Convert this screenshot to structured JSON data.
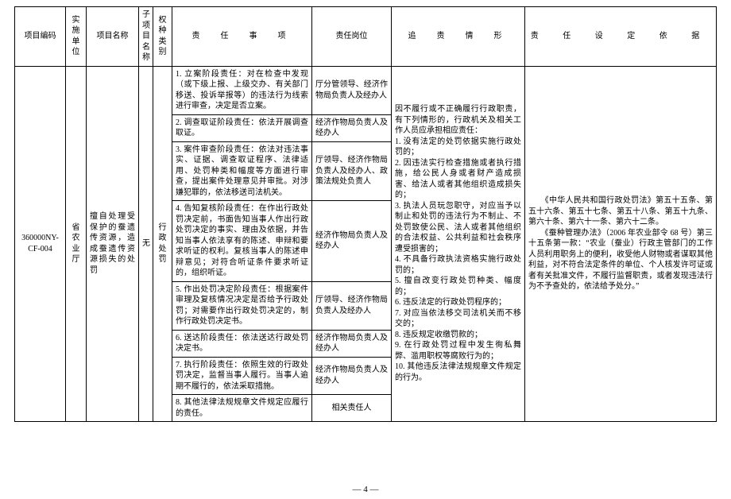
{
  "headers": {
    "code": "项目编码",
    "unit": "实施单位",
    "name": "项目名称",
    "sub": "子项目名称",
    "kind": "权种类别",
    "duty": "责　任　事　项",
    "post": "责任岗位",
    "chase": "追　责　情　形",
    "basis": "责 任 设 定 依 据"
  },
  "row": {
    "code": "360000NY-CF-004",
    "unit": "省农业厅",
    "name": "擅自处理受保护的蚕遗传资源，造成蚕遗传资源损失的处罚",
    "sub": "无",
    "kind": "行政处罚"
  },
  "duties": [
    "1. 立案阶段责任：对在检查中发现（或下级上报、上级交办、有关部门移送、投诉举报等）的违法行为线索进行审查，决定是否立案。",
    "2. 调查取证阶段责任：依法开展调查取证。",
    "3. 案件审查阶段责任：依法对违法事实、证据、调查取证程序、法律适用、处罚种类和幅度等方面进行审查，提出案件处理意见并审批。对涉嫌犯罪的，依法移送司法机关。",
    "4. 告知复核阶段责任：在作出行政处罚决定前，书面告知当事人作出行政处罚决定的事实、理由及依据，并告知当事人依法享有的陈述、申辩和要求听证的权利。复核当事人的陈述申辩意见；对符合听证条件要求听证的，组织听证。",
    "5. 作出处罚决定阶段责任：根据案件审理及复核情况决定是否给予行政处罚；对需要作出行政处罚决定的，制作行政处罚决定书。",
    "6. 送达阶段责任：依法送达行政处罚决定书。",
    "7. 执行阶段责任：依照生效的行政处罚决定，监督当事人履行。当事人逾期不履行的，依法采取措施。",
    "8. 其他法律法规规章文件规定应履行的责任。"
  ],
  "posts": [
    "厅分管领导、经济作物局负责人及经办人",
    "经济作物局负责人及经办人",
    "厅领导、经济作物局负责人及经办人、政策法规处负责人",
    "经济作物局负责人及经办人",
    "厅领导、经济作物局负责人及经办人",
    "经济作物局负责人及经办人",
    "经济作物局负责人及经办人",
    "相关责任人"
  ],
  "chase": "因不履行或不正确履行行政职责，有下列情形的，行政机关及相关工作人员应承担相应责任：\n1. 没有法定的处罚依据实施行政处罚的；\n2. 因违法实行检查措施或者执行措施，给公民人身或者财产造成损害、给法人或者其他组织造成损失的；\n3. 执法人员玩忽职守，对应当予以制止和处罚的违法行为不制止、不处罚致使公民、法人或者其他组织的合法权益、公共利益和社会秩序遭受损害的；\n4. 不具备行政执法资格实施行政处罚的；\n5. 擅自改变行政处罚种类、幅度的；\n6. 违反法定的行政处罚程序的；\n7. 对应当依法移交司法机关而不移交的；\n8. 违反规定收缴罚款的；\n9. 在行政处罚过程中发生徇私舞弊、滥用职权等腐败行为的；\n10. 其他违反法律法规规章文件规定的行为。",
  "basis": "　　《中华人民共和国行政处罚法》第五十五条、第五十六条、第五十七条、第五十八条、第五十九条、第六十条、第六十一条、第六十二条。\n　　《蚕种管理办法》（2006 年农业部令 68 号）第三十五条第一款：“农业（蚕业）行政主管部门的工作人员利用职务上的便利，收受他人财物或者谋取其他利益，对不符合法定条件的单位、个人核发许可证或者有关批准文件，不履行监督职责，或者发现违法行为不予查处的，依法给予处分。”",
  "page": "— 4 —"
}
